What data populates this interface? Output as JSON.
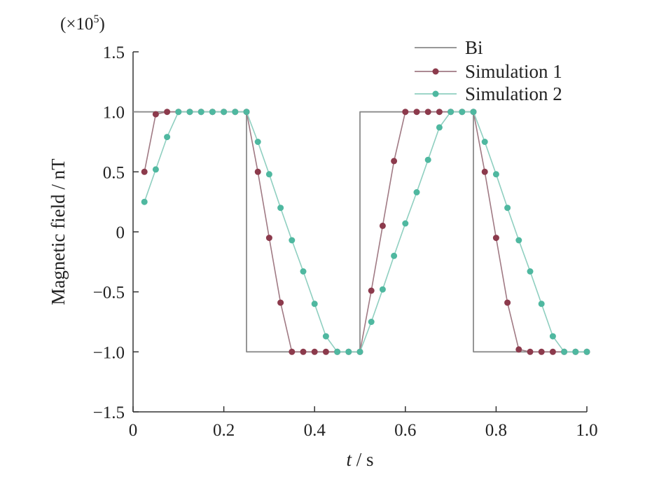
{
  "chart_data": {
    "type": "line",
    "xlabel_italic": "t",
    "xlabel_rest": " / s",
    "ylabel": "Magnetic field / nT",
    "y_scale_prefix": "(×10",
    "y_scale_exp": "5",
    "y_scale_suffix": ")",
    "xlim": [
      0,
      1.0
    ],
    "ylim": [
      -1.5,
      1.5
    ],
    "x_ticks": [
      0,
      0.2,
      0.4,
      0.6,
      0.8,
      1.0
    ],
    "x_tick_labels": [
      "0",
      "0.2",
      "0.4",
      "0.6",
      "0.8",
      "1.0"
    ],
    "y_ticks": [
      1.5,
      1.0,
      0.5,
      0,
      -0.5,
      -1.0,
      -1.5
    ],
    "y_tick_labels": [
      "1.5",
      "1.0",
      "0.5",
      "0",
      "−0.5",
      "−1.0",
      "−1.5"
    ],
    "grid": false,
    "legend_position": "top-right",
    "series": [
      {
        "name": "Bi",
        "color": "#8a8a8a",
        "marker": "none",
        "x": [
          0,
          0.25,
          0.25,
          0.5,
          0.5,
          0.75,
          0.75,
          1.0
        ],
        "y": [
          1.0,
          1.0,
          -1.0,
          -1.0,
          1.0,
          1.0,
          -1.0,
          -1.0
        ]
      },
      {
        "name": "Simulation 1",
        "color": "#8c3a4c",
        "line_color": "#a07a84",
        "marker": "circle",
        "x": [
          0.025,
          0.05,
          0.075,
          0.1,
          0.125,
          0.15,
          0.175,
          0.2,
          0.225,
          0.25,
          0.275,
          0.3,
          0.325,
          0.35,
          0.375,
          0.4,
          0.425,
          0.45,
          0.475,
          0.5,
          0.525,
          0.55,
          0.575,
          0.6,
          0.625,
          0.65,
          0.675,
          0.7,
          0.725,
          0.75,
          0.775,
          0.8,
          0.825,
          0.85,
          0.875,
          0.9,
          0.925,
          0.95,
          0.975,
          1.0
        ],
        "y": [
          0.5,
          0.98,
          1.0,
          1.0,
          1.0,
          1.0,
          1.0,
          1.0,
          1.0,
          1.0,
          0.5,
          -0.05,
          -0.59,
          -1.0,
          -1.0,
          -1.0,
          -1.0,
          -1.0,
          -1.0,
          -1.0,
          -0.49,
          0.05,
          0.59,
          1.0,
          1.0,
          1.0,
          1.0,
          1.0,
          1.0,
          1.0,
          0.5,
          -0.05,
          -0.59,
          -0.98,
          -1.0,
          -1.0,
          -1.0,
          -1.0,
          -1.0,
          -1.0
        ]
      },
      {
        "name": "Simulation 2",
        "color": "#4fb8a0",
        "line_color": "#8fcfc0",
        "marker": "circle",
        "x": [
          0.025,
          0.05,
          0.075,
          0.1,
          0.125,
          0.15,
          0.175,
          0.2,
          0.225,
          0.25,
          0.275,
          0.3,
          0.325,
          0.35,
          0.375,
          0.4,
          0.425,
          0.45,
          0.475,
          0.5,
          0.525,
          0.55,
          0.575,
          0.6,
          0.625,
          0.65,
          0.675,
          0.7,
          0.725,
          0.75,
          0.775,
          0.8,
          0.825,
          0.85,
          0.875,
          0.9,
          0.925,
          0.95,
          0.975,
          1.0
        ],
        "y": [
          0.25,
          0.52,
          0.79,
          1.0,
          1.0,
          1.0,
          1.0,
          1.0,
          1.0,
          1.0,
          0.75,
          0.48,
          0.2,
          -0.07,
          -0.33,
          -0.6,
          -0.87,
          -1.0,
          -1.0,
          -1.0,
          -0.75,
          -0.48,
          -0.2,
          0.07,
          0.33,
          0.6,
          0.87,
          1.0,
          1.0,
          1.0,
          0.75,
          0.48,
          0.2,
          -0.07,
          -0.33,
          -0.6,
          -0.87,
          -1.0,
          -1.0,
          -1.0
        ]
      }
    ]
  }
}
